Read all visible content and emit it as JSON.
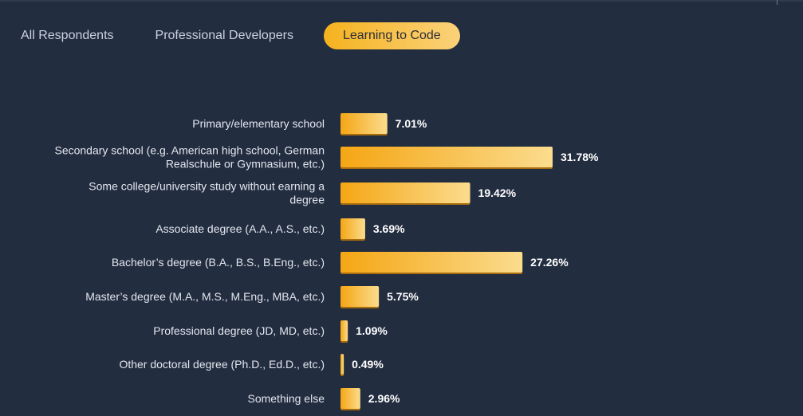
{
  "tabs": [
    {
      "label": "All Respondents",
      "active": false
    },
    {
      "label": "Professional Developers",
      "active": false
    },
    {
      "label": "Learning to Code",
      "active": true
    }
  ],
  "colors": {
    "background": "#232d40",
    "bar_start": "#f5a614",
    "bar_end": "#fbdc8e",
    "bar_shadow": "#a66c0e"
  },
  "chart_data": {
    "type": "bar",
    "orientation": "horizontal",
    "title": "",
    "xlabel": "",
    "ylabel": "",
    "grid": false,
    "categories": [
      [
        "Primary/elementary school"
      ],
      [
        "Secondary school (e.g. American high school, German",
        "Realschule or Gymnasium, etc.)"
      ],
      [
        "Some college/university study without earning a",
        "degree"
      ],
      [
        "Associate degree (A.A., A.S., etc.)"
      ],
      [
        "Bachelor’s degree (B.A., B.S., B.Eng., etc.)"
      ],
      [
        "Master’s degree (M.A., M.S., M.Eng., MBA, etc.)"
      ],
      [
        "Professional degree (JD, MD, etc.)"
      ],
      [
        "Other doctoral degree (Ph.D., Ed.D., etc.)"
      ],
      [
        "Something else"
      ]
    ],
    "values": [
      7.01,
      31.78,
      19.42,
      3.69,
      27.26,
      5.75,
      1.09,
      0.49,
      2.96
    ],
    "value_labels": [
      "7.01%",
      "31.78%",
      "19.42%",
      "3.69%",
      "27.26%",
      "5.75%",
      "1.09%",
      "0.49%",
      "2.96%"
    ],
    "unit": "%"
  }
}
